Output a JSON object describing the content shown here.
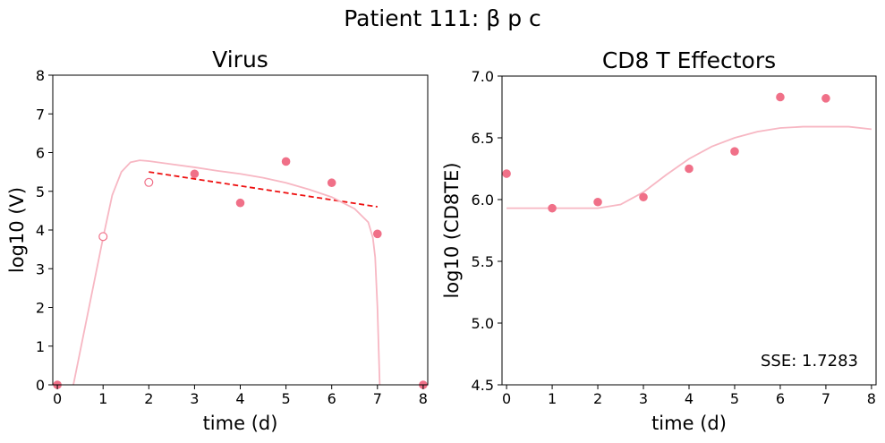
{
  "figure": {
    "suptitle": "Patient 111: β p c"
  },
  "colors": {
    "data_marker": "#f07088",
    "model_curve": "#f7b7c3",
    "fit_line": "#ee1111"
  },
  "chart_data": [
    {
      "type": "scatter",
      "title": "Virus",
      "xlabel": "time (d)",
      "ylabel": "log10 (V)",
      "xlim": [
        -0.1,
        8.1
      ],
      "ylim": [
        0,
        8
      ],
      "xticks": [
        0,
        1,
        2,
        3,
        4,
        5,
        6,
        7,
        8
      ],
      "yticks": [
        0,
        1,
        2,
        3,
        4,
        5,
        6,
        7,
        8
      ],
      "grid": false,
      "series": [
        {
          "kind": "markers",
          "style": "filled",
          "x": [
            0,
            3,
            4,
            5,
            6,
            7,
            8
          ],
          "y": [
            0,
            5.45,
            4.7,
            5.77,
            5.22,
            3.9,
            0
          ]
        },
        {
          "kind": "markers",
          "style": "hollow",
          "x": [
            1,
            2
          ],
          "y": [
            3.83,
            5.23
          ]
        },
        {
          "kind": "line",
          "style": "dashed",
          "x": [
            2,
            7
          ],
          "y": [
            5.5,
            4.6
          ]
        },
        {
          "kind": "line",
          "style": "solid",
          "x": [
            0.35,
            1.0,
            1.2,
            1.4,
            1.6,
            1.8,
            2.0,
            2.5,
            3.0,
            3.5,
            4.0,
            4.5,
            5.0,
            5.5,
            6.0,
            6.5,
            6.8,
            6.9,
            6.95,
            7.0,
            7.03,
            7.05
          ],
          "y": [
            0,
            3.8,
            4.9,
            5.5,
            5.75,
            5.8,
            5.78,
            5.7,
            5.62,
            5.53,
            5.45,
            5.35,
            5.22,
            5.05,
            4.85,
            4.55,
            4.2,
            3.8,
            3.3,
            2.0,
            0.8,
            0
          ]
        }
      ]
    },
    {
      "type": "scatter",
      "title": "CD8 T Effectors",
      "xlabel": "time (d)",
      "ylabel": "log10 (CD8TE)",
      "xlim": [
        -0.1,
        8.1
      ],
      "ylim": [
        4.5,
        7.0
      ],
      "xticks": [
        0,
        1,
        2,
        3,
        4,
        5,
        6,
        7,
        8
      ],
      "yticks": [
        4.5,
        5.0,
        5.5,
        6.0,
        6.5,
        7.0
      ],
      "grid": false,
      "annotation": "SSE: 1.7283",
      "series": [
        {
          "kind": "markers",
          "style": "filled",
          "x": [
            0,
            1,
            2,
            3,
            4,
            5,
            6,
            7
          ],
          "y": [
            6.21,
            5.93,
            5.98,
            6.02,
            6.25,
            6.39,
            6.83,
            6.82
          ]
        },
        {
          "kind": "line",
          "style": "solid",
          "x": [
            0,
            1,
            2,
            2.5,
            3,
            3.5,
            4,
            4.5,
            5,
            5.5,
            6,
            6.5,
            7,
            7.5,
            8
          ],
          "y": [
            5.93,
            5.93,
            5.93,
            5.96,
            6.06,
            6.2,
            6.33,
            6.43,
            6.5,
            6.55,
            6.58,
            6.59,
            6.59,
            6.59,
            6.57
          ]
        }
      ]
    }
  ]
}
